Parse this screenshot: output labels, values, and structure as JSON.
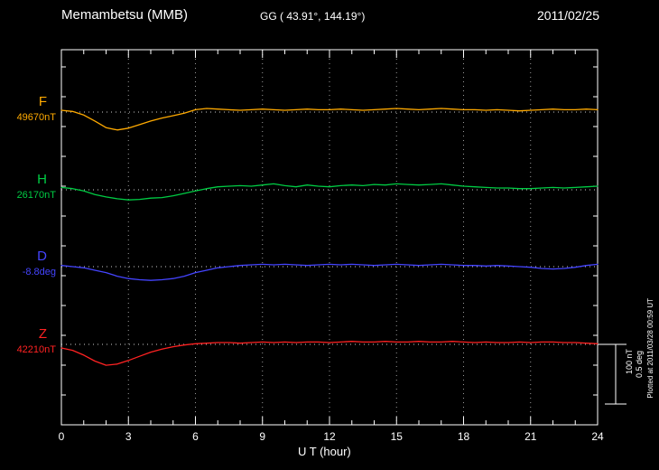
{
  "header": {
    "station": "Memambetsu (MMB)",
    "coords": "GG ( 43.91°, 144.19°)",
    "date": "2011/02/25"
  },
  "footer": {
    "plotted_at": "Plotted at 2011/03/28 00:59 UT"
  },
  "chart_data": {
    "type": "line",
    "title": "Memambetsu (MMB)",
    "subtitle": "GG ( 43.91°, 144.19°)",
    "date": "2011/02/25",
    "xlabel": "U T (hour)",
    "x_range": [
      0,
      24
    ],
    "x_ticks": [
      0,
      3,
      6,
      9,
      12,
      15,
      18,
      21,
      24
    ],
    "x_step_hours": 0.5,
    "grid": "dotted vertical at 3h intervals, dotted horizontal baseline per component",
    "legend_position": "left labels per trace",
    "scale_bar": {
      "nT": 100,
      "deg": 0.5,
      "label_nt": "100 nT",
      "label_deg": "0.5 deg"
    },
    "series": [
      {
        "name": "F",
        "unit": "nT",
        "base_label": "49670nT",
        "baseline_value": 49670,
        "color": "#ffaa00",
        "offsets": [
          3,
          1,
          -5,
          -15,
          -26,
          -30,
          -27,
          -21,
          -15,
          -10,
          -6,
          -2,
          4,
          6,
          5,
          4,
          3,
          4,
          5,
          4,
          3,
          4,
          5,
          4,
          4,
          5,
          4,
          3,
          4,
          5,
          6,
          5,
          4,
          5,
          6,
          5,
          4,
          4,
          3,
          4,
          3,
          2,
          3,
          4,
          5,
          4,
          4,
          5,
          4
        ]
      },
      {
        "name": "H",
        "unit": "nT",
        "base_label": "26170nT",
        "baseline_value": 26170,
        "color": "#00cc44",
        "offsets": [
          4,
          2,
          -2,
          -8,
          -12,
          -15,
          -17,
          -16,
          -14,
          -13,
          -10,
          -6,
          -2,
          2,
          5,
          6,
          7,
          6,
          8,
          10,
          7,
          5,
          8,
          6,
          5,
          7,
          8,
          7,
          9,
          8,
          10,
          9,
          8,
          9,
          10,
          8,
          6,
          5,
          4,
          3,
          3,
          2,
          2,
          3,
          4,
          3,
          4,
          5,
          6
        ]
      },
      {
        "name": "D",
        "unit": "deg",
        "base_label": "-8.8deg",
        "baseline_value": -8.8,
        "color": "#4444ff",
        "offsets": [
          0.01,
          0,
          -0.01,
          -0.03,
          -0.05,
          -0.08,
          -0.1,
          -0.11,
          -0.115,
          -0.11,
          -0.1,
          -0.08,
          -0.05,
          -0.03,
          -0.01,
          0,
          0.01,
          0.015,
          0.02,
          0.015,
          0.02,
          0.015,
          0.01,
          0.015,
          0.02,
          0.015,
          0.02,
          0.015,
          0.01,
          0.015,
          0.02,
          0.015,
          0.01,
          0.015,
          0.02,
          0.015,
          0.01,
          0.01,
          0.005,
          0.01,
          0.005,
          0,
          -0.005,
          -0.015,
          -0.02,
          -0.015,
          -0.005,
          0.01,
          0.02
        ]
      },
      {
        "name": "Z",
        "unit": "nT",
        "base_label": "42210nT",
        "baseline_value": 42210,
        "color": "#ff2222",
        "offsets": [
          -6,
          -10,
          -18,
          -28,
          -35,
          -33,
          -27,
          -20,
          -13,
          -8,
          -4,
          -1,
          1,
          2,
          3,
          3,
          2,
          3,
          4,
          3,
          4,
          3,
          4,
          4,
          3,
          4,
          5,
          4,
          4,
          5,
          4,
          4,
          5,
          4,
          4,
          5,
          4,
          3,
          4,
          3,
          3,
          4,
          3,
          4,
          4,
          3,
          3,
          2,
          1
        ]
      }
    ]
  }
}
